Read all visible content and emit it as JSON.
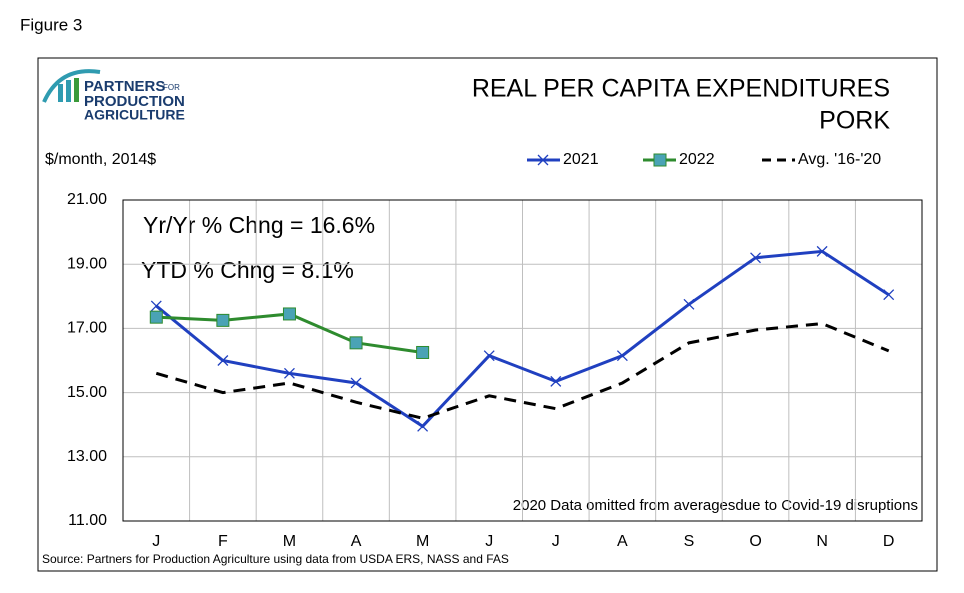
{
  "figure_label": "Figure 3",
  "logo": {
    "line1": "PARTNERS",
    "for": "FOR",
    "line2": "PRODUCTION",
    "line3": "AGRICULTURE"
  },
  "chart_data": {
    "type": "line",
    "title": [
      "REAL PER CAPITA EXPENDITURES",
      "PORK"
    ],
    "y_label": "$/month, 2014$",
    "categories": [
      "J",
      "F",
      "M",
      "A",
      "M",
      "J",
      "J",
      "A",
      "S",
      "O",
      "N",
      "D"
    ],
    "series": [
      {
        "name": "2021",
        "color": "#2040c0",
        "marker": "x",
        "dash": false,
        "values": [
          17.7,
          16.0,
          15.6,
          15.3,
          13.95,
          16.15,
          15.35,
          16.15,
          17.75,
          19.2,
          19.4,
          18.05
        ]
      },
      {
        "name": "2022",
        "color": "#2e8b2e",
        "marker": "square",
        "marker_color": "#4aa3b5",
        "dash": false,
        "values": [
          17.35,
          17.25,
          17.45,
          16.55,
          16.25,
          null,
          null,
          null,
          null,
          null,
          null,
          null
        ]
      },
      {
        "name": "Avg. '16-'20",
        "color": "#000000",
        "marker": "none",
        "dash": true,
        "values": [
          15.6,
          15.0,
          15.3,
          14.7,
          14.2,
          14.9,
          14.5,
          15.3,
          16.55,
          16.95,
          17.15,
          16.3
        ]
      }
    ],
    "ylim": [
      11,
      21
    ],
    "yticks": [
      {
        "value": 11,
        "label": "11.00"
      },
      {
        "value": 13,
        "label": "13.00"
      },
      {
        "value": 15,
        "label": "15.00"
      },
      {
        "value": 17,
        "label": "17.00"
      },
      {
        "value": 19,
        "label": "19.00"
      },
      {
        "value": 21,
        "label": "21.00"
      }
    ],
    "grid": true,
    "legend": "top-right",
    "annotations": [
      "Yr/Yr % Chng = 16.6%",
      "YTD % Chng = 8.1%",
      "2020 Data omitted from averagesdue to Covid-19 disruptions"
    ],
    "source": "Source: Partners for Production Agriculture using data from USDA ERS, NASS and FAS"
  }
}
